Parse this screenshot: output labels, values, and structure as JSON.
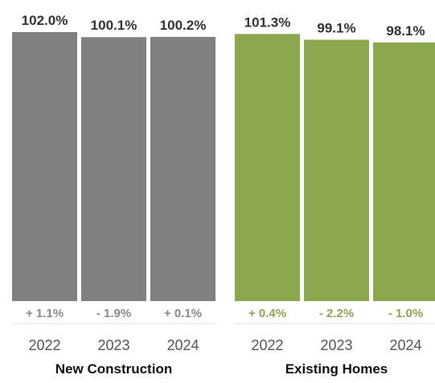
{
  "chart_data": {
    "type": "bar",
    "groups": [
      {
        "name": "New Construction",
        "color": "#808080",
        "change_color": "#8a8a8a",
        "bars": [
          {
            "year": "2022",
            "value": 102.0,
            "label": "102.0%",
            "change": "+ 1.1%"
          },
          {
            "year": "2023",
            "value": 100.1,
            "label": "100.1%",
            "change": "- 1.9%"
          },
          {
            "year": "2024",
            "value": 100.2,
            "label": "100.2%",
            "change": "+ 0.1%"
          }
        ]
      },
      {
        "name": "Existing Homes",
        "color": "#8ca84e",
        "change_color": "#8ca84e",
        "bars": [
          {
            "year": "2022",
            "value": 101.3,
            "label": "101.3%",
            "change": "+ 0.4%"
          },
          {
            "year": "2023",
            "value": 99.1,
            "label": "99.1%",
            "change": "- 2.2%"
          },
          {
            "year": "2024",
            "value": 98.1,
            "label": "98.1%",
            "change": "- 1.0%"
          }
        ]
      }
    ],
    "ylim": [
      0,
      102.0
    ],
    "grid": false,
    "legend": "none"
  }
}
